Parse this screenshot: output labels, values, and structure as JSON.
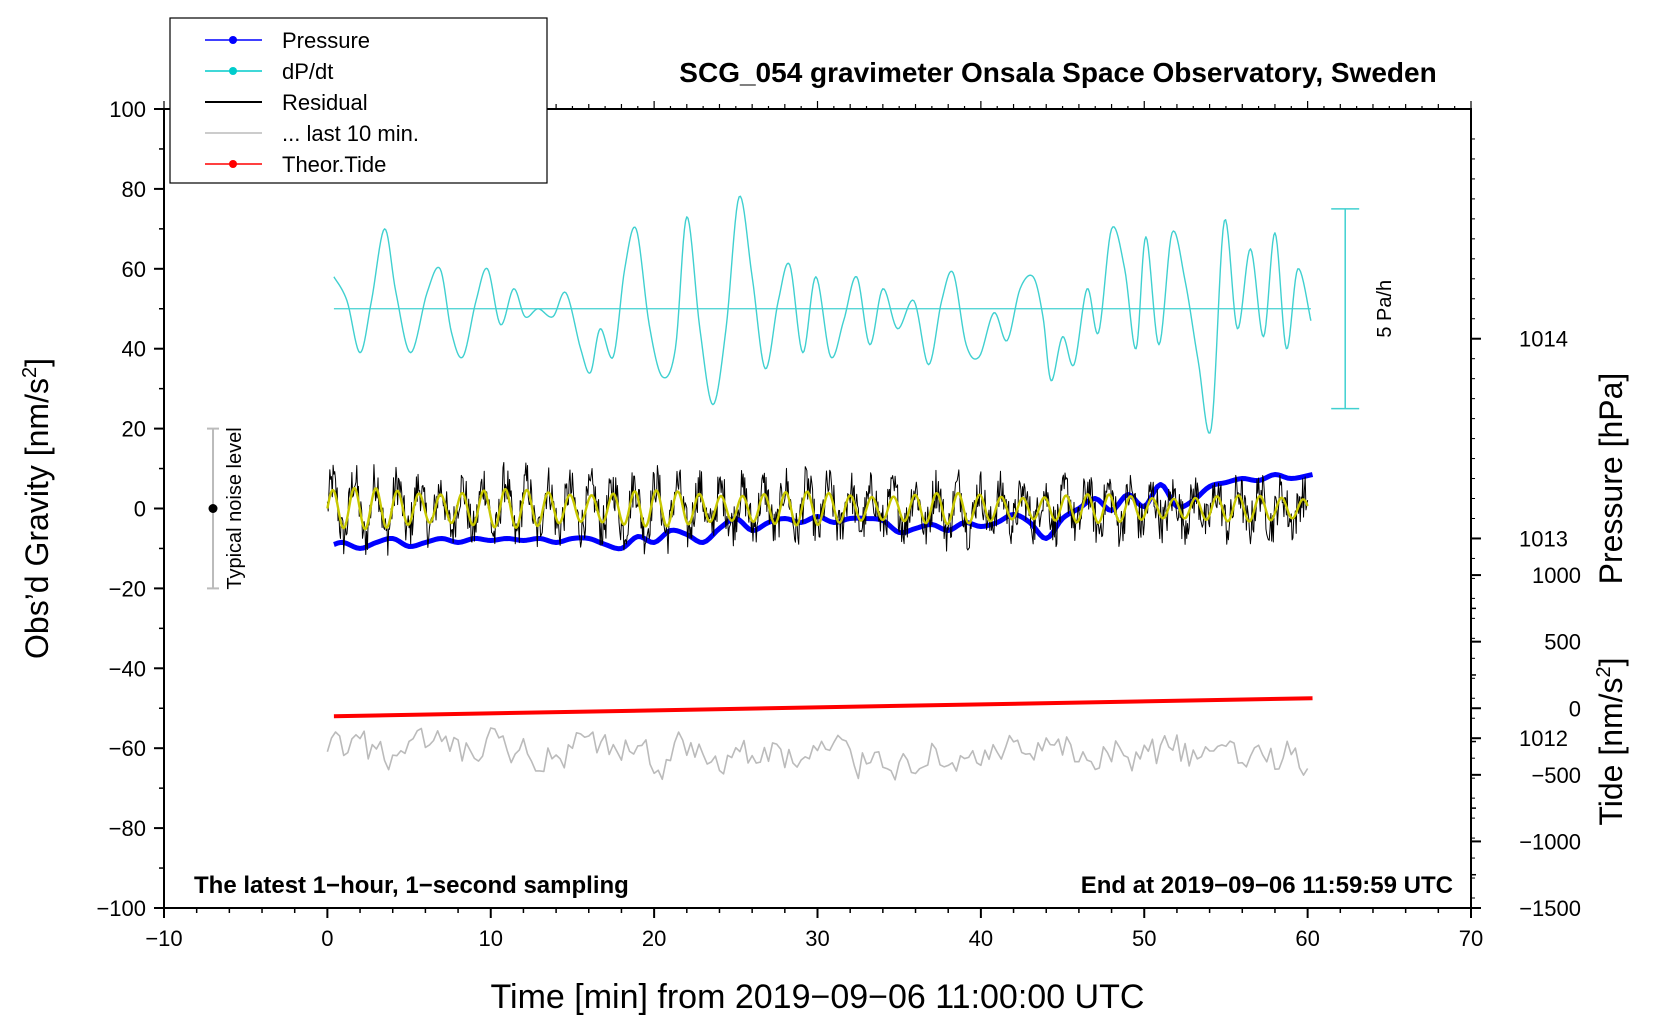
{
  "chart_data": {
    "type": "line",
    "title": "SCG_054 gravimeter Onsala Space Observatory, Sweden",
    "xlabel": "Time [min] from 2019−09−06 11:00:00 UTC",
    "ylabel_left": "Obs’d Gravity [nm/s",
    "ylabel_left_sup": "2",
    "ylabel_left_end": "]",
    "ylabel_right_pressure": "Pressure [hPa]",
    "ylabel_right_tide": "Tide [nm/s",
    "ylabel_right_tide_sup": "2",
    "ylabel_right_tide_end": "]",
    "xlim": [
      -10,
      70
    ],
    "ylim": [
      -100,
      100
    ],
    "pressure_lim": [
      1011.15,
      1015.15
    ],
    "tide_lim": [
      -1500,
      4500
    ],
    "x_ticks": [
      "−10",
      "0",
      "10",
      "20",
      "30",
      "40",
      "50",
      "60",
      "70"
    ],
    "x_tick_values": [
      -10,
      0,
      10,
      20,
      30,
      40,
      50,
      60,
      70
    ],
    "y_ticks": [
      "100",
      "80",
      "60",
      "40",
      "20",
      "0",
      "−20",
      "−40",
      "−60",
      "−80",
      "−100"
    ],
    "y_tick_values": [
      100,
      80,
      60,
      40,
      20,
      0,
      -20,
      -40,
      -60,
      -80,
      -100
    ],
    "pressure_ticks": [
      "1014",
      "1013",
      "1012"
    ],
    "pressure_tick_values": [
      1014,
      1013,
      1012
    ],
    "tide_ticks": [
      "1000",
      "500",
      "0",
      "−500",
      "−1000",
      "−1500"
    ],
    "tide_tick_values": [
      1000,
      500,
      0,
      -500,
      -1000,
      -1500
    ],
    "legend": [
      {
        "label": "Pressure",
        "color": "#0000ff",
        "marker": true
      },
      {
        "label": "dP/dt",
        "color": "#00cccc",
        "marker": true
      },
      {
        "label": "Residual",
        "color": "#000000",
        "marker": false
      },
      {
        "label": "... last 10 min.",
        "color": "#bbbbbb",
        "marker": false
      },
      {
        "label": "Theor.Tide",
        "color": "#ff0000",
        "marker": true
      }
    ],
    "legend_position": "top-left",
    "noise_bar": {
      "label": "Typical noise level",
      "x": -7,
      "y": 0,
      "low": -20,
      "high": 20
    },
    "rate_scale_bar": {
      "label": "5 Pa/h",
      "x": 62.3,
      "low": 25,
      "high": 75
    },
    "annotation_left": "The latest 1−hour, 1−second sampling",
    "annotation_right": "End at 2019−09−06 11:59:59 UTC",
    "series": {
      "pressure_hPa": {
        "x": [
          0.4,
          1,
          2,
          3,
          4,
          5,
          6,
          7,
          8,
          9,
          10,
          11,
          12,
          13,
          14,
          15,
          16,
          17,
          18,
          19,
          20,
          21,
          22,
          23,
          24,
          25,
          26,
          27,
          28,
          29,
          30,
          31,
          32,
          33,
          34,
          35,
          36,
          37,
          38,
          39,
          40,
          41,
          42,
          43,
          44,
          45,
          46,
          47,
          48,
          49,
          50,
          51,
          52,
          53,
          54,
          55,
          56,
          57,
          58,
          59,
          60.3
        ],
        "y": [
          1012.97,
          1012.98,
          1012.95,
          1012.98,
          1013.0,
          1012.96,
          1012.98,
          1013.0,
          1012.98,
          1013.0,
          1012.99,
          1013.0,
          1012.99,
          1013.0,
          1012.98,
          1013.0,
          1013.0,
          1012.97,
          1012.95,
          1013.01,
          1012.98,
          1013.04,
          1013.02,
          1012.98,
          1013.05,
          1013.1,
          1013.04,
          1013.08,
          1013.1,
          1013.08,
          1013.11,
          1013.08,
          1013.1,
          1013.1,
          1013.09,
          1013.03,
          1013.05,
          1013.07,
          1013.04,
          1013.08,
          1013.06,
          1013.08,
          1013.12,
          1013.08,
          1013.0,
          1013.1,
          1013.15,
          1013.2,
          1013.14,
          1013.22,
          1013.16,
          1013.27,
          1013.16,
          1013.19,
          1013.26,
          1013.28,
          1013.3,
          1013.29,
          1013.32,
          1013.3,
          1013.32
        ]
      },
      "dpdt": {
        "x": [
          0.4,
          1.2,
          2.0,
          2.7,
          3.5,
          4.2,
          5.1,
          6.1,
          6.9,
          7.6,
          8.3,
          9.1,
          9.8,
          10.6,
          11.4,
          12.1,
          12.9,
          13.8,
          14.6,
          15.5,
          16.1,
          16.7,
          17.5,
          18.2,
          18.9,
          19.7,
          20.5,
          21.3,
          22.0,
          22.8,
          23.6,
          24.4,
          25.2,
          26.0,
          26.8,
          27.6,
          28.3,
          29.1,
          29.9,
          30.8,
          31.6,
          32.4,
          33.2,
          34.0,
          34.9,
          35.9,
          36.8,
          37.6,
          38.3,
          39.1,
          39.9,
          40.8,
          41.6,
          42.4,
          43.2,
          43.8,
          44.3,
          45.0,
          45.7,
          46.5,
          47.2,
          48.0,
          48.8,
          49.5,
          50.1,
          50.9,
          51.7,
          52.5,
          53.3,
          54.1,
          54.9,
          55.7,
          56.5,
          57.3,
          58.0,
          58.7,
          59.4,
          60.2
        ],
        "y": [
          58,
          52,
          39,
          52,
          70,
          54,
          39,
          54,
          60,
          44,
          38,
          52,
          60,
          46,
          55,
          48,
          50,
          48,
          54,
          40,
          34,
          45,
          38,
          60,
          70,
          46,
          33,
          40,
          73,
          45,
          26,
          45,
          78,
          58,
          35,
          52,
          61,
          39,
          58,
          38,
          47,
          58,
          41,
          55,
          45,
          52,
          36,
          52,
          59,
          41,
          38,
          49,
          42,
          55,
          58,
          48,
          32,
          43,
          36,
          55,
          44,
          70,
          60,
          40,
          68,
          41,
          69,
          57,
          37,
          20,
          72,
          45,
          65,
          43,
          69,
          40,
          60,
          47
        ]
      },
      "residual": {
        "x_start": 0,
        "x_end": 60,
        "color": "#000000"
      },
      "residual_smooth": {
        "x_start": 0,
        "x_end": 60,
        "color": "#c8c800"
      },
      "last_10_min": {
        "x_start": 0,
        "x_end": 60,
        "offset": -62,
        "color": "#bbbbbb"
      },
      "theor_tide": {
        "x": [
          0.4,
          60.3
        ],
        "y": [
          -52,
          -47.5
        ],
        "color": "#ff0000"
      }
    }
  }
}
